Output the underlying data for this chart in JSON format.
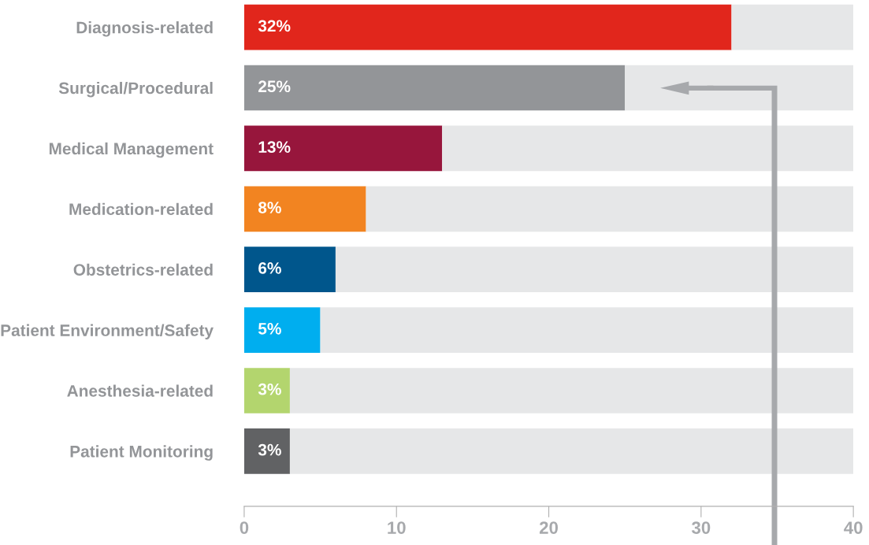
{
  "chart_data": {
    "type": "bar",
    "orientation": "horizontal",
    "categories": [
      "Diagnosis-related",
      "Surgical/Procedural",
      "Medical Management",
      "Medication-related",
      "Obstetrics-related",
      "Patient Environment/Safety",
      "Anesthesia-related",
      "Patient Monitoring"
    ],
    "series": [
      {
        "colors": [
          "#e1261c",
          "#939598",
          "#97163c",
          "#f28421",
          "#00568c",
          "#00aeef",
          "#b3d56e",
          "#616264"
        ],
        "values": [
          32,
          25,
          13,
          8,
          6,
          5,
          3,
          3
        ],
        "value_labels": [
          "32%",
          "25%",
          "13%",
          "8%",
          "6%",
          "5%",
          "3%",
          "3%"
        ]
      },
      {
        "color": "#e6e7e8",
        "values": [
          8,
          15,
          27,
          32,
          34,
          35,
          37,
          37
        ]
      }
    ],
    "stacked": true,
    "xlim": [
      0,
      40
    ],
    "xticks": [
      0,
      10,
      20,
      30,
      40
    ],
    "grid": false,
    "legend": false
  }
}
